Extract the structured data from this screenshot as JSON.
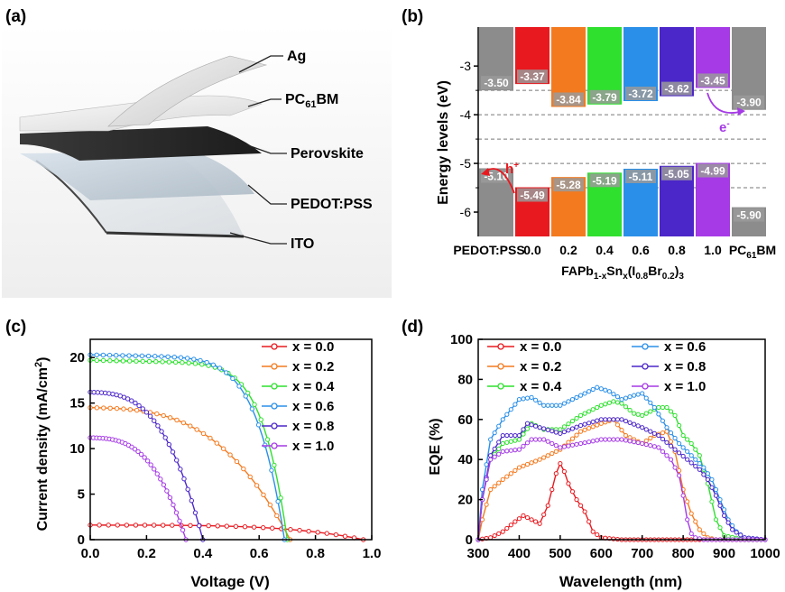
{
  "colors": {
    "x00": "#e8191f",
    "x02": "#f47a1f",
    "x04": "#2fe02f",
    "x06": "#2a8fe8",
    "x08": "#4b26c9",
    "x10": "#a53ae6",
    "gray": "#8c8c8c"
  },
  "panels": {
    "a": "(a)",
    "b": "(b)",
    "c": "(c)",
    "d": "(d)"
  },
  "panel_a": {
    "layers": [
      "Ag",
      "PC61BM",
      "Perovskite",
      "PEDOT:PSS",
      "ITO"
    ],
    "label_ag": "Ag",
    "label_pcbm_main": "PC",
    "label_pcbm_sub": "61",
    "label_pcbm_tail": "BM",
    "label_perovskite": "Perovskite",
    "label_pedot": "PEDOT:PSS",
    "label_ito": "ITO"
  },
  "chart_data": [
    {
      "panel": "b",
      "type": "bar",
      "ylabel": "Energy levels (eV)",
      "ylim": [
        -6.5,
        -2.2
      ],
      "yticks": [
        -6,
        -5,
        -4,
        -3
      ],
      "grid_dashed_y": [
        -3.5,
        -4.0,
        -4.5,
        -5.0,
        -5.5
      ],
      "xlabel_main": "FAPb",
      "xlabel_sub1": "1-x",
      "xlabel_mid": "Sn",
      "xlabel_sub2": "x",
      "xlabel_mid2": "(I",
      "xlabel_sub3": "0.8",
      "xlabel_mid3": "Br",
      "xlabel_sub4": "0.2",
      "xlabel_tail": ")",
      "xlabel_sub5": "3",
      "categories": [
        "PEDOT:PSS",
        "0.0",
        "0.2",
        "0.4",
        "0.6",
        "0.8",
        "1.0",
        "PC61BM"
      ],
      "category_pcbm_main": "PC",
      "category_pcbm_sub": "61",
      "category_pcbm_tail": "BM",
      "lumo": [
        -3.5,
        -3.37,
        -3.84,
        -3.79,
        -3.72,
        -3.62,
        -3.45,
        -3.9
      ],
      "homo": [
        -5.1,
        -5.49,
        -5.28,
        -5.19,
        -5.11,
        -5.05,
        -4.99,
        -5.9
      ],
      "lumo_labels": [
        "-3.50",
        "-3.37",
        "-3.84",
        "-3.79",
        "-3.72",
        "-3.62",
        "-3.45",
        "-3.90"
      ],
      "homo_labels": [
        "-5.10",
        "-5.49",
        "-5.28",
        "-5.19",
        "-5.11",
        "-5.05",
        "-4.99",
        "-5.90"
      ],
      "annotation_hole": "h",
      "annotation_hole_sup": "+",
      "annotation_electron": "e",
      "annotation_electron_sup": "-"
    },
    {
      "panel": "c",
      "type": "line",
      "xlabel": "Voltage (V)",
      "ylabel": "Current density (mA/cm",
      "ylabel_sup": "2",
      "ylabel_tail": ")",
      "xlim": [
        0.0,
        1.0
      ],
      "ylim": [
        0,
        22
      ],
      "xticks": [
        0.0,
        0.2,
        0.4,
        0.6,
        0.8,
        1.0
      ],
      "xtick_labels": [
        "0.0",
        "0.2",
        "0.4",
        "0.6",
        "0.8",
        "1.0"
      ],
      "yticks": [
        0,
        5,
        10,
        15,
        20
      ],
      "ytick_labels": [
        "0",
        "5",
        "10",
        "15",
        "20"
      ],
      "legend_position": "top-right",
      "series": [
        {
          "name": "x = 0.0",
          "color": "#e8191f",
          "jsc": 1.6,
          "voc": 0.97,
          "n": 4,
          "m": 1.2
        },
        {
          "name": "x = 0.2",
          "color": "#f47a1f",
          "jsc": 14.5,
          "voc": 0.71,
          "n": 3,
          "m": 1.6
        },
        {
          "name": "x = 0.4",
          "color": "#2fe02f",
          "jsc": 19.7,
          "voc": 0.7,
          "n": 8,
          "m": 1.1
        },
        {
          "name": "x = 0.6",
          "color": "#2a8fe8",
          "jsc": 20.3,
          "voc": 0.69,
          "n": 7,
          "m": 1.1
        },
        {
          "name": "x = 0.8",
          "color": "#4b26c9",
          "jsc": 16.2,
          "voc": 0.4,
          "n": 3,
          "m": 1.3
        },
        {
          "name": "x = 1.0",
          "color": "#a53ae6",
          "jsc": 11.2,
          "voc": 0.34,
          "n": 3,
          "m": 1.3
        }
      ]
    },
    {
      "panel": "d",
      "type": "line",
      "xlabel": "Wavelength (nm)",
      "ylabel": "EQE (%)",
      "xlim": [
        300,
        1000
      ],
      "ylim": [
        0,
        100
      ],
      "xticks": [
        300,
        400,
        500,
        600,
        700,
        800,
        900,
        1000
      ],
      "xtick_labels": [
        "300",
        "400",
        "500",
        "600",
        "700",
        "800",
        "900",
        "1000"
      ],
      "yticks": [
        0,
        20,
        40,
        60,
        80,
        100
      ],
      "ytick_labels": [
        "0",
        "20",
        "40",
        "60",
        "80",
        "100"
      ],
      "legend_position": "top",
      "series": [
        {
          "name": "x = 0.0",
          "color": "#e8191f",
          "x": [
            300,
            330,
            360,
            390,
            410,
            430,
            450,
            470,
            490,
            500,
            510,
            520,
            540,
            560,
            580,
            600,
            650,
            700,
            750,
            800,
            850,
            900,
            950,
            1000
          ],
          "y": [
            0,
            1,
            4,
            9,
            12,
            10,
            8,
            17,
            33,
            38,
            34,
            28,
            20,
            14,
            4,
            1,
            0,
            0,
            0,
            0,
            0,
            0,
            0,
            0
          ]
        },
        {
          "name": "x = 0.2",
          "color": "#f47a1f",
          "x": [
            300,
            310,
            330,
            360,
            400,
            450,
            500,
            550,
            600,
            630,
            660,
            700,
            730,
            760,
            780,
            800,
            820,
            840,
            860,
            880,
            900,
            950,
            1000
          ],
          "y": [
            0,
            10,
            25,
            30,
            36,
            40,
            45,
            54,
            58,
            60,
            52,
            48,
            52,
            54,
            44,
            25,
            13,
            5,
            1,
            0,
            0,
            0,
            0
          ],
          "note": "secondary peak ~61 at 650"
        },
        {
          "name": "x = 0.4",
          "color": "#2fe02f",
          "x": [
            300,
            310,
            330,
            360,
            400,
            430,
            460,
            500,
            550,
            600,
            630,
            650,
            680,
            700,
            740,
            760,
            780,
            800,
            820,
            840,
            860,
            880,
            900,
            950,
            1000
          ],
          "y": [
            0,
            20,
            40,
            48,
            50,
            58,
            55,
            55,
            62,
            67,
            69,
            68,
            63,
            62,
            66,
            66,
            62,
            52,
            48,
            42,
            28,
            10,
            2,
            0,
            0
          ]
        },
        {
          "name": "x = 0.6",
          "color": "#2a8fe8",
          "x": [
            300,
            310,
            330,
            360,
            400,
            430,
            460,
            500,
            550,
            590,
            620,
            650,
            680,
            700,
            730,
            760,
            790,
            820,
            850,
            870,
            890,
            910,
            930,
            950,
            1000
          ],
          "y": [
            0,
            25,
            50,
            60,
            70,
            71,
            67,
            67,
            72,
            76,
            74,
            70,
            72,
            73,
            66,
            56,
            48,
            42,
            36,
            30,
            20,
            10,
            4,
            1,
            0
          ]
        },
        {
          "name": "x = 0.8",
          "color": "#4b26c9",
          "x": [
            300,
            310,
            330,
            360,
            400,
            420,
            450,
            500,
            550,
            600,
            650,
            700,
            740,
            780,
            810,
            840,
            860,
            880,
            900,
            920,
            950,
            1000
          ],
          "y": [
            0,
            20,
            42,
            52,
            52,
            58,
            56,
            53,
            57,
            60,
            60,
            56,
            52,
            45,
            40,
            35,
            30,
            22,
            12,
            5,
            1,
            0
          ]
        },
        {
          "name": "x = 1.0",
          "color": "#a53ae6",
          "x": [
            300,
            310,
            330,
            360,
            400,
            430,
            460,
            500,
            550,
            600,
            650,
            700,
            740,
            770,
            790,
            800,
            810,
            820,
            830,
            850,
            900,
            1000
          ],
          "y": [
            0,
            20,
            40,
            44,
            45,
            50,
            50,
            46,
            48,
            50,
            50,
            48,
            46,
            40,
            32,
            22,
            10,
            3,
            1,
            0,
            0,
            0
          ]
        }
      ]
    }
  ]
}
